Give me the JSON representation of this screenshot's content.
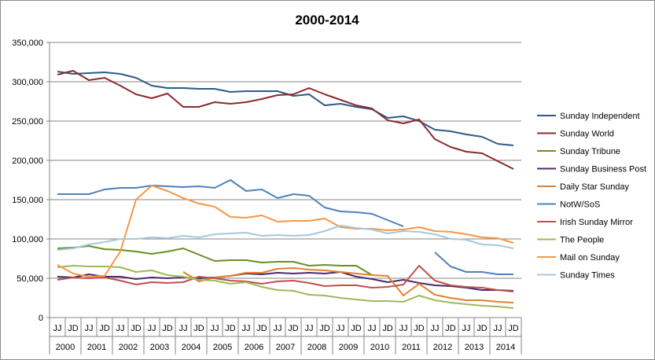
{
  "chart_data": {
    "type": "line",
    "title": "2000-2014",
    "xlabel": "",
    "ylabel": "",
    "ylim": [
      0,
      350000
    ],
    "yticks": [
      0,
      50000,
      100000,
      150000,
      200000,
      250000,
      300000,
      350000
    ],
    "ytick_labels": [
      "0",
      "50,000",
      "100,000",
      "150,000",
      "200,000",
      "250,000",
      "300,000",
      "350,000"
    ],
    "grid": "horizontal",
    "legend_position": "right",
    "categories": [
      "JJ",
      "JD",
      "JJ",
      "JD",
      "JJ",
      "JD",
      "JJ",
      "JD",
      "JJ",
      "JD",
      "JJ",
      "JD",
      "JJ",
      "JD",
      "JJ",
      "JD",
      "JJ",
      "JD",
      "JJ",
      "JD",
      "JJ",
      "JD",
      "JJ",
      "JD",
      "JJ",
      "JD",
      "JJ",
      "JD",
      "JJ",
      "JD"
    ],
    "years": [
      "2000",
      "2001",
      "2002",
      "2003",
      "2004",
      "2005",
      "2006",
      "2007",
      "2008",
      "2009",
      "2010",
      "2011",
      "2012",
      "2013",
      "2014"
    ],
    "series": [
      {
        "name": "Sunday Independent",
        "color": "#2e5a8a",
        "values": [
          313000,
          310000,
          311000,
          312000,
          310000,
          305000,
          295000,
          292000,
          292000,
          291000,
          291000,
          287000,
          288000,
          288000,
          288000,
          282000,
          284000,
          270000,
          272000,
          268000,
          265000,
          254000,
          256000,
          250000,
          239000,
          237000,
          233000,
          230000,
          221000,
          219000
        ]
      },
      {
        "name": "Sunday World",
        "color": "#8b2b2b",
        "values": [
          309000,
          314000,
          302000,
          305000,
          295000,
          284000,
          279000,
          285000,
          268000,
          268000,
          274000,
          272000,
          274000,
          278000,
          283000,
          284000,
          292000,
          284000,
          277000,
          270000,
          266000,
          251000,
          247000,
          252000,
          227000,
          217000,
          211000,
          209000,
          199000,
          189000
        ]
      },
      {
        "name": "Sunday Tribune",
        "color": "#6b8e23",
        "values": [
          88000,
          89000,
          91000,
          87000,
          86000,
          84000,
          81000,
          84000,
          88000,
          80000,
          72000,
          73000,
          73000,
          70000,
          71000,
          71000,
          66000,
          67000,
          66000,
          66000,
          54000,
          null,
          null,
          null,
          null,
          null,
          null,
          null,
          null,
          null
        ]
      },
      {
        "name": "Sunday Business Post",
        "color": "#4b2a6b",
        "values": [
          52000,
          51000,
          55000,
          52000,
          52000,
          49000,
          51000,
          50000,
          51000,
          50000,
          51000,
          53000,
          56000,
          55000,
          57000,
          56000,
          57000,
          56000,
          58000,
          52000,
          49000,
          45000,
          48000,
          44000,
          41000,
          40000,
          38000,
          35000,
          35000,
          34000
        ]
      },
      {
        "name": "Daily Star Sunday",
        "color": "#e2812e",
        "values": [
          null,
          null,
          null,
          null,
          null,
          null,
          null,
          null,
          58000,
          46000,
          51000,
          53000,
          57000,
          57000,
          62000,
          63000,
          61000,
          60000,
          58000,
          56000,
          54000,
          53000,
          28000,
          43000,
          29000,
          25000,
          22000,
          22000,
          20000,
          19000
        ]
      },
      {
        "name": "NotW/SoS",
        "color": "#4f81bd",
        "values": [
          157000,
          157000,
          157000,
          163000,
          165000,
          165000,
          168000,
          167000,
          166000,
          167000,
          165000,
          175000,
          161000,
          163000,
          152000,
          157000,
          155000,
          140000,
          135000,
          134000,
          132000,
          124000,
          116000,
          null,
          83000,
          65000,
          58000,
          58000,
          55000,
          55000
        ]
      },
      {
        "name": "Irish Sunday Mirror",
        "color": "#c0504d",
        "values": [
          48000,
          51000,
          50000,
          51000,
          47000,
          42000,
          45000,
          44000,
          45000,
          52000,
          50000,
          47000,
          46000,
          43000,
          46000,
          47000,
          44000,
          40000,
          41000,
          41000,
          38000,
          39000,
          42000,
          66000,
          47000,
          41000,
          39000,
          38000,
          35000,
          33000
        ]
      },
      {
        "name": "The People",
        "color": "#9bbb59",
        "values": [
          64000,
          66000,
          65000,
          65000,
          64000,
          58000,
          60000,
          54000,
          52000,
          48000,
          47000,
          43000,
          45000,
          39000,
          35000,
          34000,
          29000,
          28000,
          25000,
          23000,
          21000,
          21000,
          20000,
          28000,
          22000,
          19000,
          17000,
          15000,
          14000,
          12000
        ]
      },
      {
        "name": "Mail on Sunday",
        "color": "#f79646",
        "values": [
          67000,
          56000,
          52000,
          53000,
          84000,
          150000,
          168000,
          161000,
          152000,
          145000,
          141000,
          128000,
          127000,
          130000,
          122000,
          123000,
          123000,
          126000,
          115000,
          113000,
          113000,
          111000,
          112000,
          115000,
          110000,
          109000,
          106000,
          102000,
          101000,
          95000
        ]
      },
      {
        "name": "Sunday Times",
        "color": "#a5c8df",
        "values": [
          86000,
          88000,
          93000,
          96000,
          100000,
          100000,
          102000,
          101000,
          104000,
          102000,
          106000,
          107000,
          108000,
          104000,
          105000,
          104000,
          105000,
          110000,
          117000,
          114000,
          112000,
          107000,
          110000,
          109000,
          106000,
          100000,
          99000,
          93000,
          92000,
          88000
        ]
      }
    ]
  }
}
